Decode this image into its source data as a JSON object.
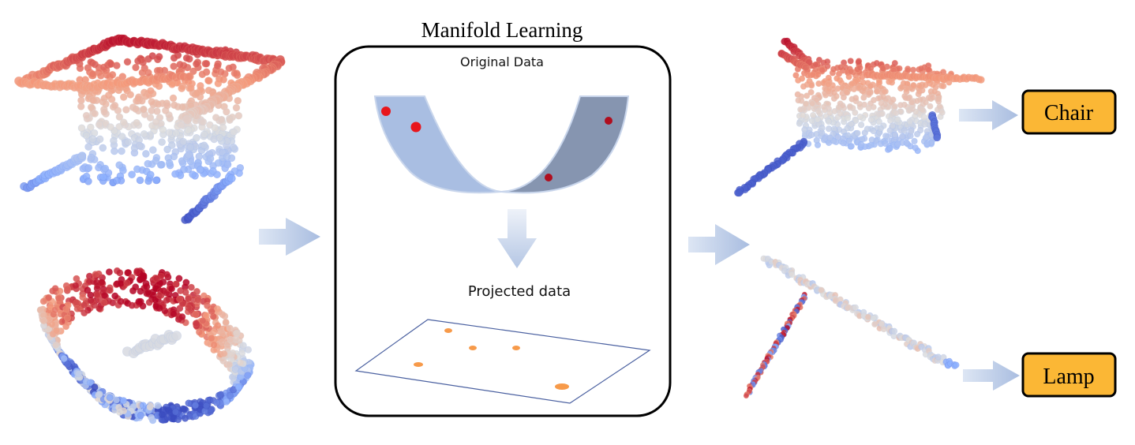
{
  "title": "Manifold Learning",
  "panel": {
    "original_label": "Original Data",
    "projected_label": "Projected data"
  },
  "outputs": {
    "chair_label": "Chair",
    "lamp_label": "Lamp"
  },
  "colors": {
    "label_fill": "#fbb735",
    "label_border": "#000000",
    "arrow": "#b7c8e4",
    "manifold_left": "#a7bde0",
    "manifold_right": "#8494ad",
    "point_red": "#e8161c",
    "point_dark_red": "#b00e1e",
    "projected_point": "#f79a4a",
    "plane_border": "#4a60a0",
    "cloud_hot": "#b40426",
    "cloud_cold": "#3b4cc0"
  }
}
